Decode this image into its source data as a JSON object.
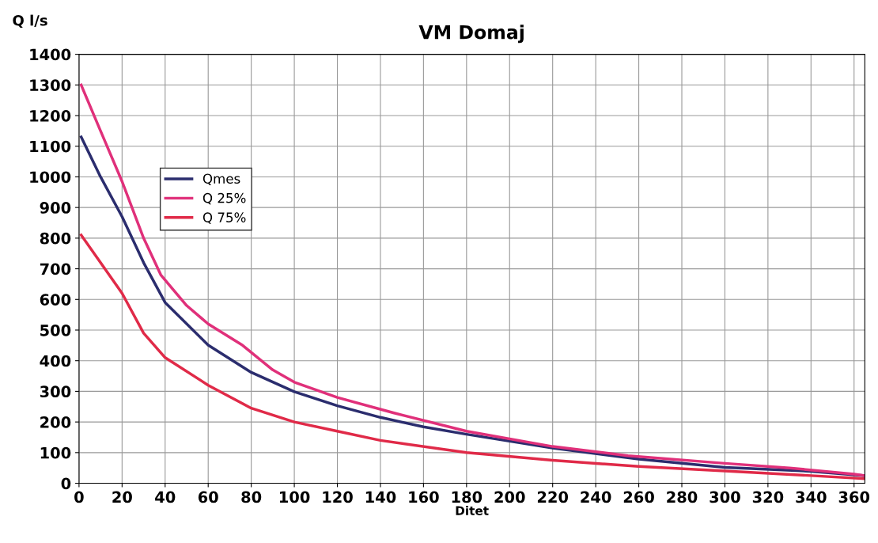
{
  "chart_data": {
    "type": "line",
    "title": "VM Domaj",
    "xlabel": "Ditet",
    "ylabel": "Q l/s",
    "xlim": [
      0,
      365
    ],
    "ylim": [
      0,
      1400
    ],
    "xticks": [
      0,
      20,
      40,
      60,
      80,
      100,
      120,
      140,
      160,
      180,
      200,
      220,
      240,
      260,
      280,
      300,
      320,
      340,
      360
    ],
    "yticks": [
      0,
      100,
      200,
      300,
      400,
      500,
      600,
      700,
      800,
      900,
      1000,
      1100,
      1200,
      1300,
      1400
    ],
    "grid": true,
    "legend": "top left",
    "series": [
      {
        "name": "Qmes",
        "color": "#2b2d6e",
        "x": [
          1,
          10,
          20,
          30,
          40,
          60,
          80,
          100,
          120,
          140,
          160,
          180,
          220,
          260,
          300,
          340,
          365
        ],
        "values": [
          1130,
          1000,
          870,
          720,
          590,
          451,
          362,
          299,
          253,
          215,
          184,
          160,
          115,
          79,
          52,
          39,
          25
        ]
      },
      {
        "name": "Q 25%",
        "color": "#e0307a",
        "x": [
          1,
          10,
          20,
          30,
          38,
          50,
          60,
          76,
          90,
          100,
          120,
          146,
          180,
          220,
          255,
          300,
          330,
          360,
          365
        ],
        "values": [
          1300,
          1150,
          985,
          800,
          680,
          580,
          520,
          450,
          370,
          330,
          280,
          230,
          170,
          120,
          90,
          65,
          50,
          30,
          25
        ]
      },
      {
        "name": "Q 75%",
        "color": "#e02a48",
        "x": [
          1,
          10,
          20,
          30,
          40,
          60,
          80,
          100,
          120,
          140,
          180,
          220,
          260,
          300,
          340,
          365
        ],
        "values": [
          810,
          720,
          620,
          490,
          410,
          320,
          245,
          200,
          170,
          140,
          100,
          75,
          55,
          40,
          25,
          15
        ]
      }
    ]
  }
}
